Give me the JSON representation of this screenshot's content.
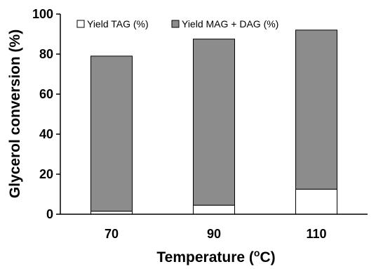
{
  "chart_data": {
    "type": "bar",
    "stacked": true,
    "categories": [
      "70",
      "90",
      "110"
    ],
    "series": [
      {
        "name": "Yield TAG (%)",
        "values": [
          1.5,
          4.5,
          12.5
        ],
        "color": "#ffffff"
      },
      {
        "name": "Yield MAG + DAG (%)",
        "values": [
          77.5,
          83,
          79.5
        ],
        "color": "#8c8c8c"
      }
    ],
    "ylim": [
      0,
      100
    ],
    "yticks": [
      0,
      20,
      40,
      60,
      80,
      100
    ],
    "xlabel_main": "Temperature (",
    "xlabel_sup": "o",
    "xlabel_end": "C)",
    "ylabel": "Glycerol conversion (%)",
    "grid": false,
    "legend_position": "top"
  }
}
